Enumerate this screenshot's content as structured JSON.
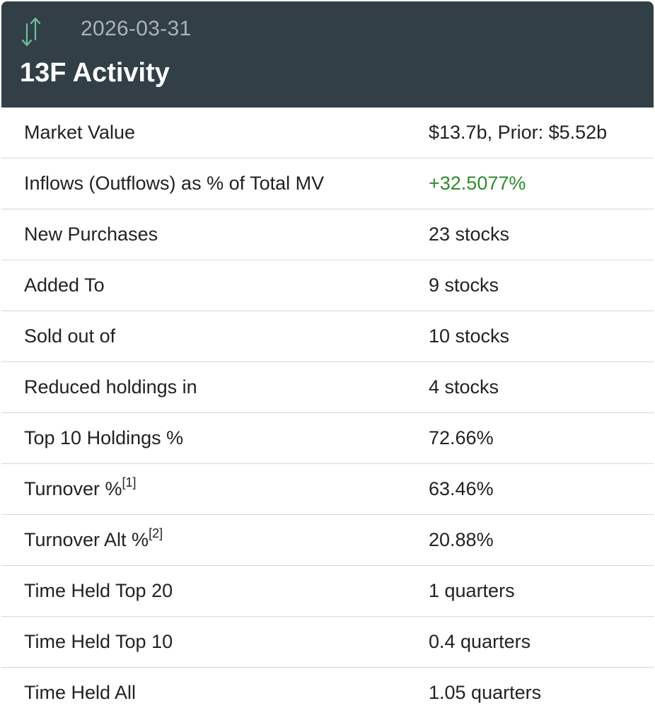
{
  "header": {
    "date": "2026-03-31",
    "title": "13F Activity",
    "icon": "up-down-arrows-icon",
    "icon_color": "#6fbf9a",
    "background": "#323f47"
  },
  "rows": [
    {
      "label": "Market Value",
      "value": "$13.7b, Prior: $5.52b"
    },
    {
      "label": "Inflows (Outflows) as % of Total MV",
      "value": "+32.5077%",
      "value_color": "#2e8b2e"
    },
    {
      "label": "New Purchases",
      "value": "23 stocks"
    },
    {
      "label": "Added To",
      "value": "9 stocks"
    },
    {
      "label": "Sold out of",
      "value": "10 stocks"
    },
    {
      "label": "Reduced holdings in",
      "value": "4 stocks"
    },
    {
      "label": "Top 10 Holdings %",
      "value": "72.66%"
    },
    {
      "label": "Turnover %",
      "footnote": "[1]",
      "value": "63.46%"
    },
    {
      "label": "Turnover Alt %",
      "footnote": "[2]",
      "value": "20.88%"
    },
    {
      "label": "Time Held Top 20",
      "value": "1 quarters"
    },
    {
      "label": "Time Held Top 10",
      "value": "0.4 quarters"
    },
    {
      "label": "Time Held All",
      "value": "1.05 quarters"
    }
  ]
}
